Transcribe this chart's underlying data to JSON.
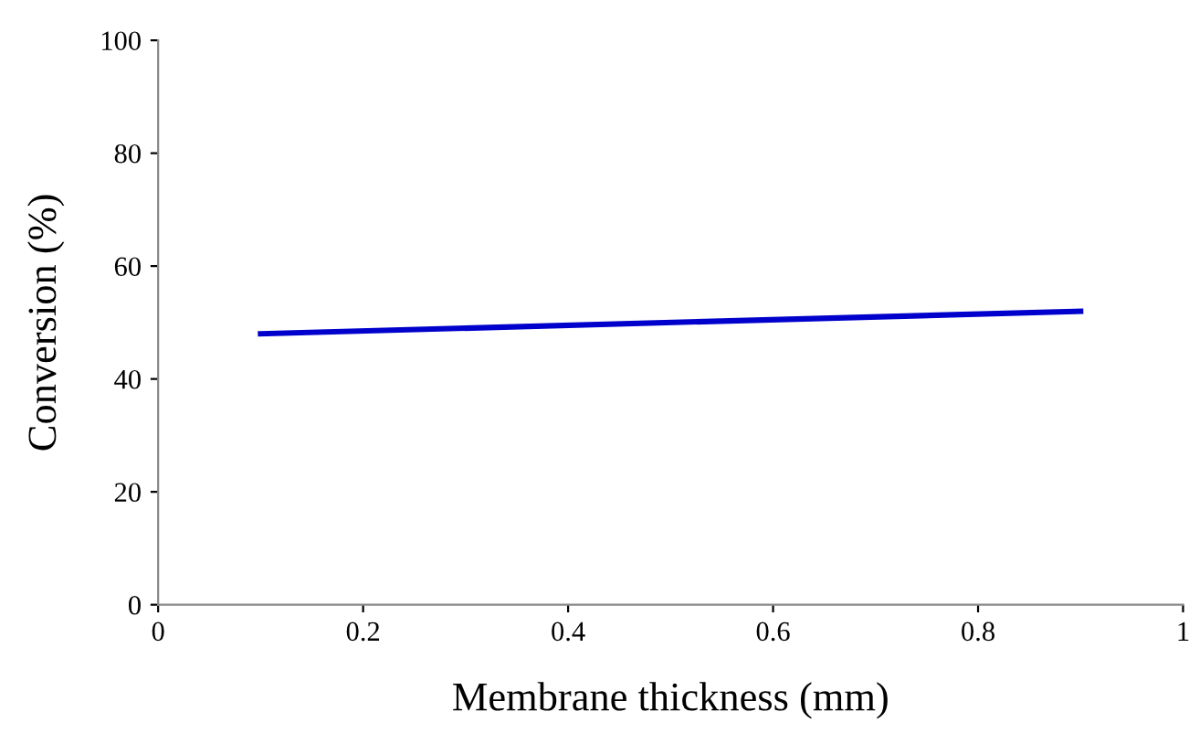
{
  "chart_data": {
    "type": "line",
    "xlabel": "Membrane thickness (mm)",
    "ylabel": "Conversion (%)",
    "x": [
      0.1,
      0.9
    ],
    "series": [
      {
        "color": "#0000cc",
        "values": [
          48,
          52
        ]
      }
    ],
    "xlim": [
      0,
      1
    ],
    "xticks": [
      0,
      0.2,
      0.4,
      0.6,
      0.8,
      1
    ],
    "ylim": [
      0,
      100
    ],
    "yticks": [
      0,
      20,
      40,
      60,
      80,
      100
    ],
    "grid": false,
    "legend": false,
    "marker": "none",
    "line_style": "solid"
  }
}
